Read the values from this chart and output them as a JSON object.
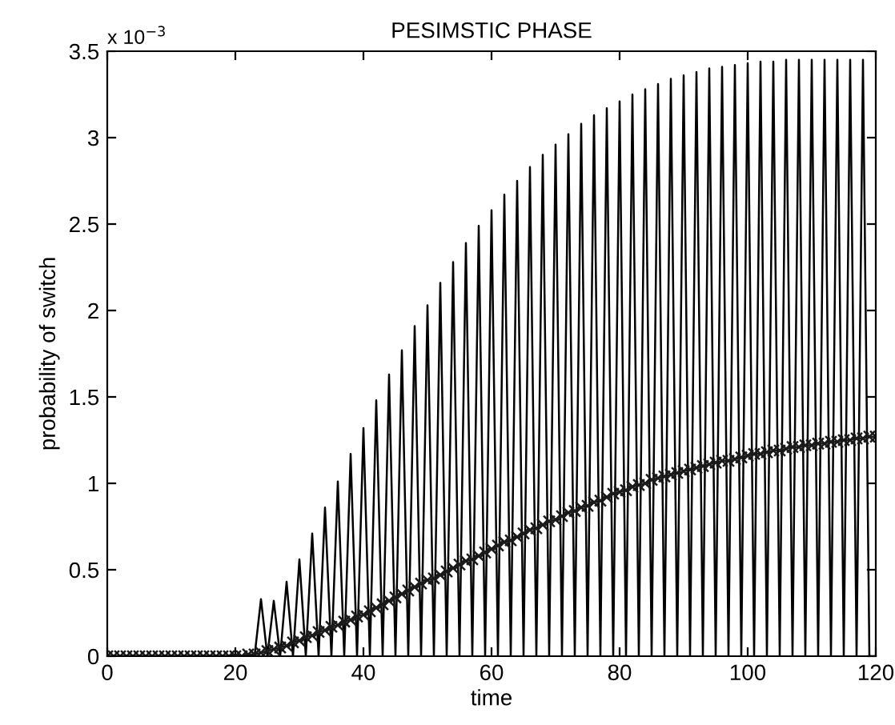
{
  "chart_data": {
    "type": "line",
    "title": "PESIMSTIC PHASE",
    "xlabel": "time",
    "ylabel": "probability of switch",
    "annotations": [
      "x 10$^{−3}$"
    ],
    "x": [
      0,
      1,
      2,
      3,
      4,
      5,
      6,
      7,
      8,
      9,
      10,
      11,
      12,
      13,
      14,
      15,
      16,
      17,
      18,
      19,
      20,
      21,
      22,
      23,
      24,
      25,
      26,
      27,
      28,
      29,
      30,
      31,
      32,
      33,
      34,
      35,
      36,
      37,
      38,
      39,
      40,
      41,
      42,
      43,
      44,
      45,
      46,
      47,
      48,
      49,
      50,
      51,
      52,
      53,
      54,
      55,
      56,
      57,
      58,
      59,
      60,
      61,
      62,
      63,
      64,
      65,
      66,
      67,
      68,
      69,
      70,
      71,
      72,
      73,
      74,
      75,
      76,
      77,
      78,
      79,
      80,
      81,
      82,
      83,
      84,
      85,
      86,
      87,
      88,
      89,
      90,
      91,
      92,
      93,
      94,
      95,
      96,
      97,
      98,
      99,
      100,
      101,
      102,
      103,
      104,
      105,
      106,
      107,
      108,
      109,
      110,
      111,
      112,
      113,
      114,
      115,
      116,
      117,
      118,
      119,
      120
    ],
    "series": [
      {
        "color": "#000000",
        "marker": "none",
        "values": [
          0,
          0,
          0,
          0,
          0,
          0,
          0,
          0,
          0,
          0,
          0,
          0,
          0,
          0,
          0,
          0,
          0,
          0,
          0,
          0,
          0.01,
          0,
          0.01,
          0,
          0.33,
          0,
          0.32,
          0,
          0.43,
          0,
          0.56,
          0,
          0.71,
          0,
          0.86,
          0,
          1.01,
          0,
          1.17,
          0,
          1.32,
          0,
          1.48,
          0,
          1.63,
          0,
          1.77,
          0,
          1.91,
          0,
          2.03,
          0,
          2.16,
          0,
          2.28,
          0,
          2.39,
          0,
          2.49,
          0,
          2.58,
          0,
          2.67,
          0,
          2.75,
          0,
          2.83,
          0,
          2.9,
          0,
          2.96,
          0,
          3.02,
          0,
          3.08,
          0,
          3.13,
          0,
          3.17,
          0,
          3.21,
          0,
          3.25,
          0,
          3.28,
          0,
          3.31,
          0,
          3.34,
          0,
          3.36,
          0,
          3.38,
          0,
          3.4,
          0,
          3.41,
          0,
          3.42,
          0,
          3.43,
          0,
          3.44,
          0,
          3.44,
          0,
          3.45,
          0,
          3.45,
          0,
          3.45,
          0,
          3.45,
          0,
          3.45,
          0,
          3.45,
          0,
          3.45,
          0,
          0
        ]
      },
      {
        "color": "#1a1a1a",
        "marker": "cross",
        "values": [
          0,
          0,
          0,
          0,
          0,
          0,
          0,
          0,
          0,
          0,
          0,
          0,
          0,
          0,
          0,
          0,
          0,
          0,
          0,
          0,
          0,
          0,
          0.01,
          0.01,
          0.02,
          0.03,
          0.04,
          0.05,
          0.06,
          0.08,
          0.09,
          0.11,
          0.12,
          0.14,
          0.15,
          0.17,
          0.18,
          0.2,
          0.21,
          0.23,
          0.24,
          0.26,
          0.28,
          0.3,
          0.32,
          0.34,
          0.36,
          0.38,
          0.4,
          0.42,
          0.44,
          0.45,
          0.47,
          0.49,
          0.51,
          0.53,
          0.55,
          0.56,
          0.58,
          0.6,
          0.62,
          0.64,
          0.66,
          0.67,
          0.69,
          0.71,
          0.73,
          0.74,
          0.76,
          0.78,
          0.79,
          0.81,
          0.83,
          0.84,
          0.86,
          0.87,
          0.89,
          0.9,
          0.92,
          0.94,
          0.95,
          0.96,
          0.98,
          0.99,
          1.0,
          1.02,
          1.03,
          1.04,
          1.05,
          1.06,
          1.07,
          1.08,
          1.09,
          1.1,
          1.11,
          1.12,
          1.13,
          1.13,
          1.14,
          1.15,
          1.16,
          1.17,
          1.17,
          1.18,
          1.19,
          1.19,
          1.2,
          1.21,
          1.21,
          1.22,
          1.22,
          1.23,
          1.23,
          1.24,
          1.24,
          1.25,
          1.25,
          1.26,
          1.26,
          1.27,
          1.27
        ]
      }
    ],
    "xlim": [
      0,
      120
    ],
    "xticks": [
      0,
      20,
      40,
      60,
      80,
      100,
      120
    ],
    "ylim": [
      0,
      3.5
    ],
    "yticks": [
      0,
      0.5,
      1,
      1.5,
      2,
      2.5,
      3,
      3.5
    ],
    "line_style": "solid",
    "grid": false,
    "legend": false
  }
}
